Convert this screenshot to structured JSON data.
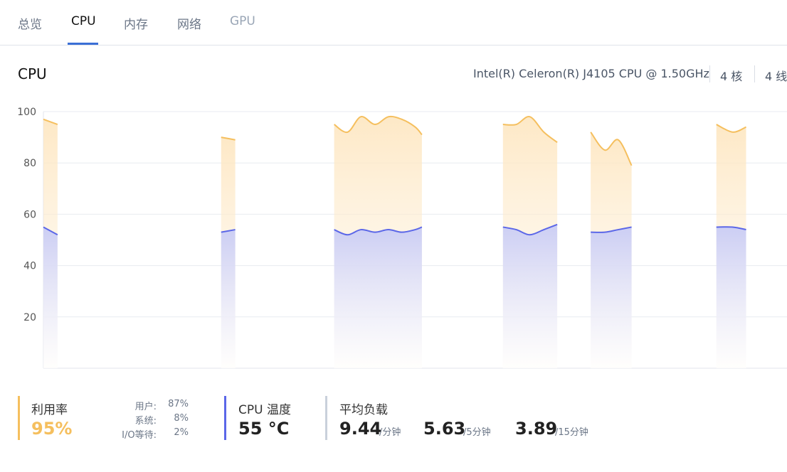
{
  "tabs": [
    {
      "label": "总览"
    },
    {
      "label": "CPU"
    },
    {
      "label": "内存"
    },
    {
      "label": "网络"
    },
    {
      "label": "GPU"
    }
  ],
  "header": {
    "title": "CPU",
    "model": "Intel(R) Celeron(R) J4105 CPU @ 1.50GHz",
    "cores": "4 核",
    "threads": "4 线"
  },
  "colors": {
    "usage": "#f5bf5e",
    "temp": "#5b67e8",
    "accent": "#3b6fd6",
    "load": "#c9d0db"
  },
  "chart_data": {
    "type": "area",
    "yticks": [
      20,
      40,
      60,
      80,
      100
    ],
    "ylim": [
      0,
      100
    ],
    "xlim": [
      0,
      100
    ],
    "series": [
      {
        "name": "利用率",
        "segments": [
          [
            [
              0,
              97
            ],
            [
              1.9,
              95
            ]
          ],
          [
            [
              23.9,
              90
            ],
            [
              25.8,
              89
            ]
          ],
          [
            [
              39.1,
              95
            ],
            [
              40.9,
              92
            ],
            [
              42.7,
              98
            ],
            [
              44.6,
              95
            ],
            [
              46.4,
              98
            ],
            [
              48.2,
              97
            ],
            [
              50.0,
              94
            ],
            [
              50.9,
              91
            ]
          ],
          [
            [
              61.8,
              95
            ],
            [
              63.6,
              95
            ],
            [
              65.4,
              98
            ],
            [
              67.3,
              92
            ],
            [
              69.1,
              88
            ]
          ],
          [
            [
              73.6,
              92
            ],
            [
              75.5,
              85
            ],
            [
              77.3,
              89
            ],
            [
              79.1,
              79
            ]
          ],
          [
            [
              90.5,
              95
            ],
            [
              92.7,
              92
            ],
            [
              94.5,
              94
            ]
          ]
        ]
      },
      {
        "name": "CPU 温度",
        "segments": [
          [
            [
              0,
              55
            ],
            [
              1.9,
              52
            ]
          ],
          [
            [
              23.9,
              53
            ],
            [
              25.8,
              54
            ]
          ],
          [
            [
              39.1,
              54
            ],
            [
              40.9,
              52
            ],
            [
              42.7,
              54
            ],
            [
              44.6,
              53
            ],
            [
              46.4,
              54
            ],
            [
              48.2,
              53
            ],
            [
              50.0,
              54
            ],
            [
              50.9,
              55
            ]
          ],
          [
            [
              61.8,
              55
            ],
            [
              63.6,
              54
            ],
            [
              65.4,
              52
            ],
            [
              67.3,
              54
            ],
            [
              69.1,
              56
            ]
          ],
          [
            [
              73.6,
              53
            ],
            [
              75.5,
              53
            ],
            [
              77.3,
              54
            ],
            [
              79.1,
              55
            ]
          ],
          [
            [
              90.5,
              55
            ],
            [
              92.7,
              55
            ],
            [
              94.5,
              54
            ]
          ]
        ]
      }
    ]
  },
  "stats": {
    "usage": {
      "label": "利用率",
      "value": "95%",
      "user_label": "用户:",
      "user_value": "87%",
      "system_label": "系统:",
      "system_value": "8%",
      "io_label": "I/O等待:",
      "io_value": "2%"
    },
    "temp": {
      "label": "CPU 温度",
      "value": "55 °C"
    },
    "load": {
      "label": "平均负载",
      "load1": "9.44",
      "load1_unit": "/分钟",
      "load5": "5.63",
      "load5_unit": "/5分钟",
      "load15": "3.89",
      "load15_unit": "/15分钟"
    }
  }
}
